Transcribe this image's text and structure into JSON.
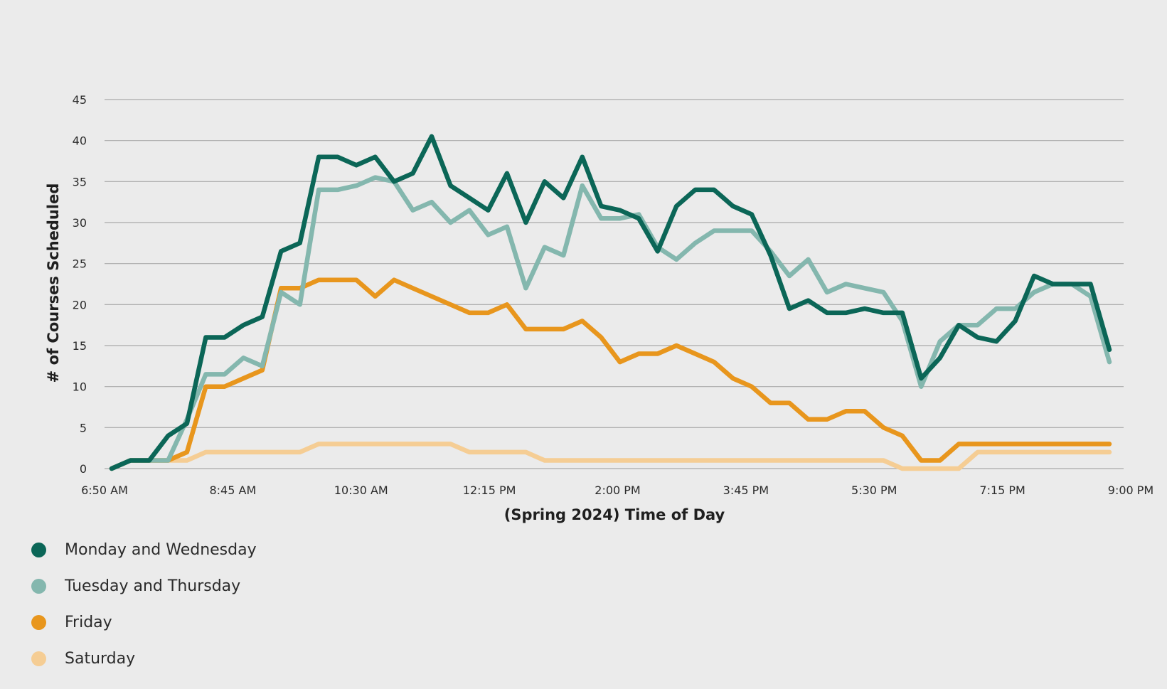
{
  "chart_data": {
    "type": "line",
    "title": "",
    "xlabel": "(Spring 2024) Time of Day",
    "ylabel": "# of Courses Scheduled",
    "ylim": [
      0,
      45
    ],
    "yticks": [
      0,
      5,
      10,
      15,
      20,
      25,
      30,
      35,
      40,
      45
    ],
    "xticks": [
      "6:50 AM",
      "8:45 AM",
      "10:30 AM",
      "12:15 PM",
      "2:00 PM",
      "3:45 PM",
      "5:30 PM",
      "7:15 PM",
      "9:00 PM"
    ],
    "grid": true,
    "legend_position": "bottom-left",
    "series": [
      {
        "name": "Monday and Wednesday",
        "color": "#0b6657",
        "values": [
          0,
          1,
          1,
          4,
          5.5,
          16,
          16,
          17.5,
          18.5,
          26.5,
          27.5,
          38,
          38,
          37,
          38,
          35,
          36,
          40.5,
          34.5,
          33,
          31.5,
          36,
          30,
          35,
          33,
          38,
          32,
          31.5,
          30.5,
          26.5,
          32,
          34,
          34,
          32,
          31,
          26,
          19.5,
          20.5,
          19,
          19,
          19.5,
          19,
          19,
          11,
          13.5,
          17.5,
          16,
          15.5,
          18,
          23.5,
          22.5,
          22.5,
          22.5,
          14.5
        ]
      },
      {
        "name": "Tuesday and Thursday",
        "color": "#84b7ae",
        "values": [
          0,
          1,
          1,
          1,
          6,
          11.5,
          11.5,
          13.5,
          12.5,
          21.5,
          20,
          34,
          34,
          34.5,
          35.5,
          35,
          31.5,
          32.5,
          30,
          31.5,
          28.5,
          29.5,
          22,
          27,
          26,
          34.5,
          30.5,
          30.5,
          31,
          27,
          25.5,
          27.5,
          29,
          29,
          29,
          26.5,
          23.5,
          25.5,
          21.5,
          22.5,
          22,
          21.5,
          18,
          10,
          15.5,
          17.5,
          17.5,
          19.5,
          19.5,
          21.5,
          22.5,
          22.5,
          21,
          13
        ]
      },
      {
        "name": "Friday",
        "color": "#e8961d",
        "values": [
          0,
          1,
          1,
          1,
          2,
          10,
          10,
          11,
          12,
          22,
          22,
          23,
          23,
          23,
          21,
          23,
          22,
          21,
          20,
          19,
          19,
          20,
          17,
          17,
          17,
          18,
          16,
          13,
          14,
          14,
          15,
          14,
          13,
          11,
          10,
          8,
          8,
          6,
          6,
          7,
          7,
          5,
          4,
          1,
          1,
          3,
          3,
          3,
          3,
          3,
          3,
          3,
          3,
          3
        ]
      },
      {
        "name": "Saturday",
        "color": "#f5cd94",
        "values": [
          0,
          1,
          1,
          1,
          1,
          2,
          2,
          2,
          2,
          2,
          2,
          3,
          3,
          3,
          3,
          3,
          3,
          3,
          3,
          2,
          2,
          2,
          2,
          1,
          1,
          1,
          1,
          1,
          1,
          1,
          1,
          1,
          1,
          1,
          1,
          1,
          1,
          1,
          1,
          1,
          1,
          1,
          0,
          0,
          0,
          0,
          2,
          2,
          2,
          2,
          2,
          2,
          2,
          2
        ]
      }
    ]
  }
}
